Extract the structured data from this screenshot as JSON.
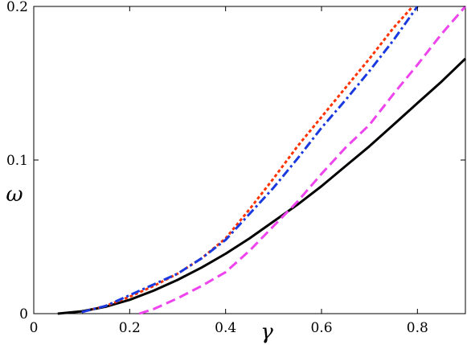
{
  "chart_data": {
    "type": "line",
    "title": "",
    "xlabel": "γ",
    "ylabel": "ω",
    "xlim": [
      0,
      0.9
    ],
    "ylim": [
      0,
      0.2
    ],
    "x_ticks": [
      0,
      0.2,
      0.4,
      0.6,
      0.8
    ],
    "x_tick_labels": [
      "0",
      "0.2",
      "0.4",
      "0.6",
      "0.8"
    ],
    "y_ticks": [
      0,
      0.1,
      0.2
    ],
    "y_tick_labels": [
      "0",
      "0.1",
      "0.2"
    ],
    "grid": false,
    "legend": "none",
    "series": [
      {
        "color": "#000000",
        "style": "solid",
        "x": [
          0.05,
          0.1,
          0.15,
          0.2,
          0.25,
          0.3,
          0.35,
          0.4,
          0.45,
          0.5,
          0.55,
          0.6,
          0.65,
          0.7,
          0.75,
          0.8,
          0.85,
          0.9
        ],
        "y": [
          0,
          0.0015,
          0.0045,
          0.009,
          0.015,
          0.022,
          0.03,
          0.039,
          0.049,
          0.06,
          0.071,
          0.083,
          0.096,
          0.109,
          0.123,
          0.137,
          0.151,
          0.166
        ]
      },
      {
        "color": "#ff3300",
        "style": "dotted",
        "x": [
          0.1,
          0.15,
          0.2,
          0.25,
          0.3,
          0.35,
          0.4,
          0.45,
          0.5,
          0.55,
          0.6,
          0.65,
          0.7,
          0.75,
          0.79
        ],
        "y": [
          0.001,
          0.005,
          0.011,
          0.018,
          0.026,
          0.036,
          0.049,
          0.068,
          0.088,
          0.109,
          0.128,
          0.147,
          0.166,
          0.186,
          0.2
        ]
      },
      {
        "color": "#1a3adf",
        "style": "dashdot",
        "x": [
          0.1,
          0.15,
          0.2,
          0.25,
          0.3,
          0.35,
          0.4,
          0.45,
          0.5,
          0.55,
          0.6,
          0.65,
          0.7,
          0.75,
          0.8
        ],
        "y": [
          0.001,
          0.005,
          0.012,
          0.019,
          0.026,
          0.036,
          0.048,
          0.065,
          0.082,
          0.101,
          0.121,
          0.139,
          0.158,
          0.178,
          0.2
        ]
      },
      {
        "color": "#ee44ee",
        "style": "dashed",
        "x": [
          0.22,
          0.25,
          0.3,
          0.35,
          0.4,
          0.45,
          0.5,
          0.55,
          0.6,
          0.65,
          0.7,
          0.75,
          0.8,
          0.85,
          0.9
        ],
        "y": [
          0,
          0.003,
          0.01,
          0.018,
          0.027,
          0.041,
          0.057,
          0.073,
          0.091,
          0.108,
          0.123,
          0.143,
          0.162,
          0.182,
          0.2
        ]
      }
    ]
  }
}
